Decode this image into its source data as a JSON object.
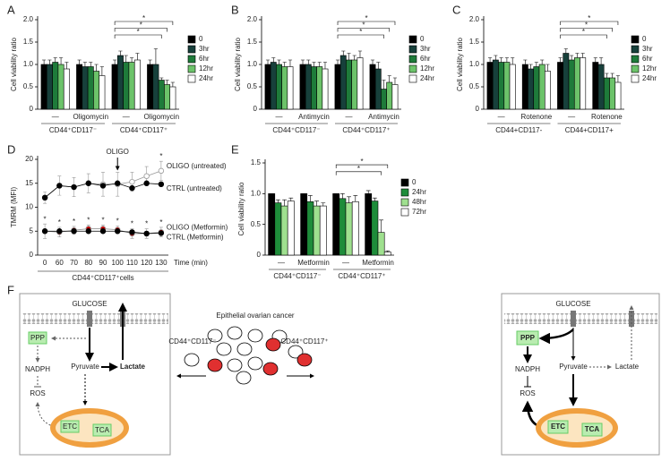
{
  "chart_data": [
    {
      "type": "bar",
      "label": "A",
      "ylabel": "Cell viability ratio",
      "categories": [
        "—",
        "Oligomycin",
        "—",
        "Oligomycin"
      ],
      "groups": [
        "CD44⁺CD117⁻",
        "CD44⁺CD117⁺"
      ],
      "ylim": [
        0,
        2
      ],
      "yticks": [
        0,
        0.5,
        {
          "value": 1,
          "label": "1.0"
        },
        1.5,
        {
          "value": 2,
          "label": "2.0"
        }
      ],
      "series": [
        {
          "name": "0",
          "color": "#000000",
          "values": [
            1.0,
            1.0,
            1.0,
            1.0
          ],
          "errors": [
            0.1,
            0.1,
            0.1,
            0.1
          ]
        },
        {
          "name": "3hr",
          "color": "#17403b",
          "values": [
            1.0,
            0.95,
            1.2,
            1.0
          ],
          "errors": [
            0.1,
            0.1,
            0.1,
            0.35
          ]
        },
        {
          "name": "6hr",
          "color": "#1e7b3a",
          "values": [
            1.05,
            0.95,
            1.05,
            0.65
          ],
          "errors": [
            0.1,
            0.1,
            0.15,
            0.05
          ]
        },
        {
          "name": "12hr",
          "color": "#6cc36a",
          "values": [
            1.0,
            0.85,
            1.05,
            0.55
          ],
          "errors": [
            0.15,
            0.15,
            0.1,
            0.1
          ]
        },
        {
          "name": "24hr",
          "color": "#ffffff",
          "values": [
            0.9,
            0.75,
            1.1,
            0.5
          ],
          "errors": [
            0.15,
            0.2,
            0.15,
            0.1
          ]
        }
      ],
      "annotations": [
        "*",
        "*",
        "*"
      ]
    },
    {
      "type": "bar",
      "label": "B",
      "ylabel": "Cell viability ratio",
      "categories": [
        "—",
        "Antimycin",
        "—",
        "Antimycin"
      ],
      "groups": [
        "CD44⁺CD117⁻",
        "CD44⁺CD117⁺"
      ],
      "ylim": [
        0,
        2
      ],
      "yticks": [
        0,
        0.5,
        {
          "value": 1,
          "label": "1.0"
        },
        1.5,
        {
          "value": 2,
          "label": "2.0"
        }
      ],
      "series": [
        {
          "name": "0",
          "color": "#000000",
          "values": [
            1.0,
            1.0,
            1.0,
            1.0
          ],
          "errors": [
            0.1,
            0.1,
            0.1,
            0.1
          ]
        },
        {
          "name": "3hr",
          "color": "#17403b",
          "values": [
            1.05,
            1.0,
            1.2,
            0.9
          ],
          "errors": [
            0.1,
            0.1,
            0.1,
            0.15
          ]
        },
        {
          "name": "6hr",
          "color": "#1e7b3a",
          "values": [
            1.0,
            0.95,
            1.1,
            0.45
          ],
          "errors": [
            0.1,
            0.1,
            0.15,
            0.2
          ]
        },
        {
          "name": "12hr",
          "color": "#6cc36a",
          "values": [
            0.95,
            0.95,
            1.1,
            0.6
          ],
          "errors": [
            0.1,
            0.1,
            0.1,
            0.15
          ]
        },
        {
          "name": "24hr",
          "color": "#ffffff",
          "values": [
            0.95,
            0.9,
            1.15,
            0.55
          ],
          "errors": [
            0.15,
            0.15,
            0.15,
            0.15
          ]
        }
      ],
      "annotations": [
        "*",
        "*",
        "*"
      ]
    },
    {
      "type": "bar",
      "label": "C",
      "ylabel": "Cell viability ratio",
      "categories": [
        "—",
        "Rotenone",
        "—",
        "Rotenone"
      ],
      "groups": [
        "CD44+CD117-",
        "CD44+CD117+"
      ],
      "ylim": [
        0,
        2
      ],
      "yticks": [
        0,
        0.5,
        {
          "value": 1,
          "label": "1.0"
        },
        1.5,
        {
          "value": 2,
          "label": "2.0"
        }
      ],
      "series": [
        {
          "name": "0",
          "color": "#000000",
          "values": [
            1.05,
            1.0,
            1.05,
            1.05
          ],
          "errors": [
            0.1,
            0.1,
            0.1,
            0.1
          ]
        },
        {
          "name": "3hr",
          "color": "#17403b",
          "values": [
            1.1,
            0.9,
            1.25,
            1.0
          ],
          "errors": [
            0.1,
            0.1,
            0.1,
            0.15
          ]
        },
        {
          "name": "6hr",
          "color": "#1e7b3a",
          "values": [
            1.05,
            0.95,
            1.1,
            0.7
          ],
          "errors": [
            0.1,
            0.1,
            0.1,
            0.1
          ]
        },
        {
          "name": "12hr",
          "color": "#6cc36a",
          "values": [
            1.05,
            1.0,
            1.15,
            0.7
          ],
          "errors": [
            0.1,
            0.1,
            0.1,
            0.1
          ]
        },
        {
          "name": "24hr",
          "color": "#ffffff",
          "values": [
            1.0,
            0.85,
            1.15,
            0.6
          ],
          "errors": [
            0.15,
            0.15,
            0.1,
            0.15
          ]
        }
      ],
      "annotations": [
        "*",
        "*",
        "*"
      ]
    },
    {
      "type": "line",
      "label": "D",
      "ylabel": "TMRM (MFI)",
      "xlabel": "Time (min)",
      "xsublabel": "CD44⁺CD117⁺cells",
      "categories": [
        "0",
        "60",
        "70",
        "80",
        "90",
        "100",
        "110",
        "120",
        "130"
      ],
      "ylim": [
        0,
        20
      ],
      "yticks": [
        0,
        5,
        10,
        15,
        20
      ],
      "series": [
        {
          "name": "OLIGO (untreated)",
          "color": "#999999",
          "marker_fill": "#ffffff",
          "values": [
            12,
            14.5,
            14.2,
            15,
            14.8,
            14.8,
            15.3,
            16.5,
            17.6
          ],
          "errors": [
            1.2,
            2,
            2,
            2,
            2.5,
            2.5,
            2,
            2,
            2
          ]
        },
        {
          "name": "CTRL (untreated)",
          "color": "#000000",
          "marker_fill": "#000000",
          "values": [
            12,
            14.5,
            14.2,
            15,
            14.5,
            15,
            14,
            15,
            14.8
          ]
        },
        {
          "name": "OLIGO (Metformin)",
          "color": "#999999",
          "marker_fill": "#cc0000",
          "values": [
            5,
            4.8,
            5.2,
            5.5,
            5.5,
            5.3,
            4.5,
            4.5,
            4.8
          ],
          "errors": [
            1.5,
            1,
            0.8,
            0.8,
            0.8,
            0.8,
            1,
            1,
            1
          ]
        },
        {
          "name": "CTRL (Metformin)",
          "color": "#000000",
          "marker_fill": "#000000",
          "values": [
            5,
            5,
            5,
            5,
            5,
            5,
            4.8,
            4.5,
            4.6
          ]
        }
      ],
      "arrow_label": "OLIGO",
      "arrow_category": "100",
      "annotations": [
        "*",
        "*",
        "*",
        "*",
        "*",
        "*",
        "*",
        "*",
        "*",
        "*"
      ]
    },
    {
      "type": "bar",
      "label": "E",
      "ylabel": "Cell viability ratio",
      "categories": [
        "—",
        "Metformin",
        "—",
        "Metformin"
      ],
      "groups": [
        "CD44⁺CD117⁻",
        "CD44⁺CD117⁺"
      ],
      "ylim": [
        0,
        1.5
      ],
      "yticks": [
        0,
        0.5,
        {
          "value": 1,
          "label": "1.0"
        },
        1.5
      ],
      "series": [
        {
          "name": "0",
          "color": "#000000",
          "values": [
            1.0,
            1.0,
            1.0,
            1.0
          ],
          "errors": [
            0,
            0,
            0,
            0.05
          ]
        },
        {
          "name": "24hr",
          "color": "#1e8c3a",
          "values": [
            0.85,
            0.87,
            0.92,
            0.88
          ],
          "errors": [
            0.05,
            0.1,
            0.08,
            0.05
          ]
        },
        {
          "name": "48hr",
          "color": "#9fe08f",
          "values": [
            0.8,
            0.8,
            0.85,
            0.37
          ],
          "errors": [
            0.1,
            0.08,
            0.1,
            0.2
          ]
        },
        {
          "name": "72hr",
          "color": "#ffffff",
          "values": [
            0.88,
            0.8,
            0.87,
            0.05
          ],
          "errors": [
            0.05,
            0.05,
            0.1,
            0.02
          ]
        }
      ],
      "annotations": [
        "*",
        "*"
      ]
    }
  ],
  "diagram": {
    "label": "F",
    "title": "Epithelial ovarian cancer",
    "left_cells": "CD44⁺CD117⁻",
    "right_cells": "CD44⁺CD117⁺",
    "left": {
      "glucose": "GLUCOSE",
      "ppp": "PPP",
      "nadph": "NADPH",
      "ros": "ROS",
      "pyruvate": "Pyruvate",
      "lactate": "Lactate",
      "etc": "ETC",
      "tca": "TCA"
    },
    "right": {
      "glucose": "GLUCOSE",
      "ppp": "PPP",
      "nadph": "NADPH",
      "ros": "ROS",
      "pyruvate": "Pyruvate",
      "lactate": "Lactate",
      "etc": "ETC",
      "tca": "TCA"
    }
  }
}
